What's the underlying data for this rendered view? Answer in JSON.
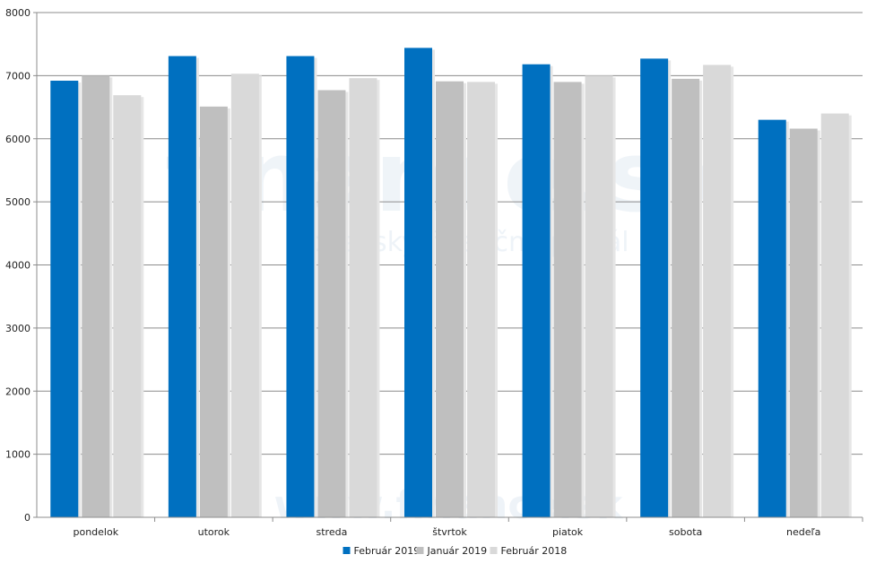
{
  "chart_data": {
    "type": "bar",
    "categories": [
      "pondelok",
      "utorok",
      "streda",
      "štvrtok",
      "piatok",
      "sobota",
      "nedeľa"
    ],
    "series": [
      {
        "name": "Február 2019",
        "color": "#0070c0",
        "values": [
          6920,
          7310,
          7310,
          7440,
          7180,
          7270,
          6300
        ]
      },
      {
        "name": "Január 2019",
        "color": "#bfbfbf",
        "values": [
          7000,
          6510,
          6770,
          6910,
          6900,
          6950,
          6160
        ]
      },
      {
        "name": "Február 2018",
        "color": "#d9d9d9",
        "values": [
          6690,
          7030,
          6960,
          6900,
          7000,
          7170,
          6400
        ]
      }
    ],
    "ylim": [
      0,
      8000
    ],
    "yticks": [
      0,
      1000,
      2000,
      3000,
      4000,
      5000,
      6000,
      7000,
      8000
    ],
    "grid": true,
    "legend_position": "bottom-center",
    "title": "",
    "xlabel": "",
    "ylabel": ""
  },
  "watermark": {
    "logo": "finance.sk",
    "tagline": "slovenský finančný portál",
    "url": "www.finance.sk"
  }
}
